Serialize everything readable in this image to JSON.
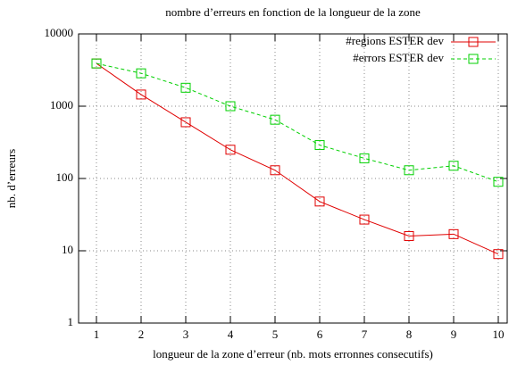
{
  "chart_data": {
    "type": "line",
    "title": "nombre d’erreurs en fonction de la longueur de la zone",
    "x_label": "longueur de la zone d’erreur (nb. mots erronnes consecutifs)",
    "y_label": "nb. d’erreurs",
    "x": [
      1,
      2,
      3,
      4,
      5,
      6,
      7,
      8,
      9,
      10
    ],
    "series": [
      {
        "name": "#regions ESTER dev",
        "color": "#e00000",
        "dashed": false,
        "values": [
          3900,
          1450,
          600,
          250,
          130,
          48,
          27,
          16,
          17,
          9
        ]
      },
      {
        "name": "#errors ESTER dev",
        "color": "#00d000",
        "dashed": true,
        "values": [
          3900,
          2850,
          1800,
          1000,
          650,
          290,
          190,
          130,
          150,
          90
        ]
      }
    ],
    "xlim": [
      0.6,
      10.2
    ],
    "xticks": [
      1,
      2,
      3,
      4,
      5,
      6,
      7,
      8,
      9,
      10
    ],
    "ylim": [
      1,
      10000
    ],
    "yticks": [
      1,
      10,
      100,
      1000,
      10000
    ],
    "log_y": true,
    "grid": true,
    "legend": "top-right"
  }
}
